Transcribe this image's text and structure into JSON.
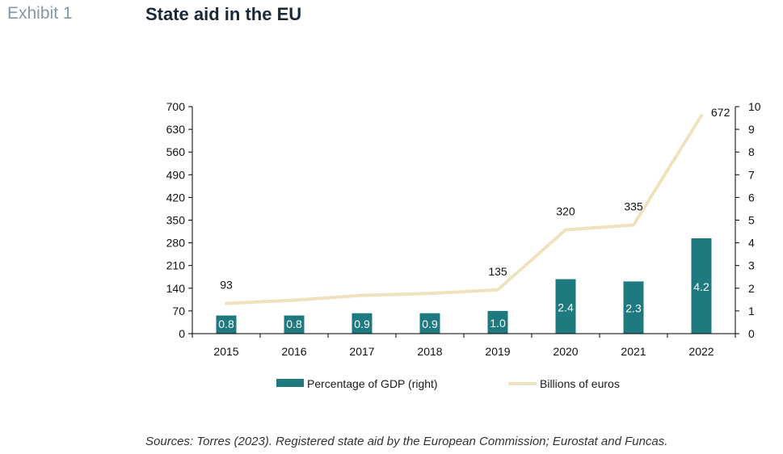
{
  "header": {
    "exhibit": "Exhibit 1",
    "title": "State aid in the EU"
  },
  "footer": {
    "source": "Sources: Torres (2023). Registered state aid by the European Commission; Eurostat and Funcas."
  },
  "colors": {
    "bar": "#1f7a80",
    "line": "#efe2bf",
    "axis": "#000000"
  },
  "chart_data": {
    "type": "bar",
    "categories": [
      "2015",
      "2016",
      "2017",
      "2018",
      "2019",
      "2020",
      "2021",
      "2022"
    ],
    "series": [
      {
        "name": "Percentage of GDP (right)",
        "type": "bar",
        "axis": "right",
        "values": [
          0.8,
          0.8,
          0.9,
          0.9,
          1.0,
          2.4,
          2.3,
          4.2
        ],
        "labels": [
          "0.8",
          "0.8",
          "0.9",
          "0.9",
          "1.0",
          "2.4",
          "2.3",
          "4.2"
        ]
      },
      {
        "name": "Billions of euros",
        "type": "line",
        "axis": "left",
        "values": [
          93,
          103,
          118,
          124,
          135,
          320,
          335,
          672
        ],
        "labels": [
          "93",
          "",
          "",
          "",
          "135",
          "320",
          "335",
          "672"
        ]
      }
    ],
    "y_left": {
      "min": 0,
      "max": 700,
      "ticks": [
        "0",
        "70",
        "140",
        "210",
        "280",
        "350",
        "420",
        "490",
        "560",
        "630",
        "700"
      ]
    },
    "y_right": {
      "min": 0,
      "max": 10,
      "ticks": [
        "0",
        "1",
        "2",
        "3",
        "4",
        "5",
        "6",
        "7",
        "8",
        "9",
        "10"
      ]
    },
    "legend": {
      "position": "bottom",
      "items": [
        "Percentage of GDP (right)",
        "Billions of euros"
      ]
    },
    "grid": false
  }
}
